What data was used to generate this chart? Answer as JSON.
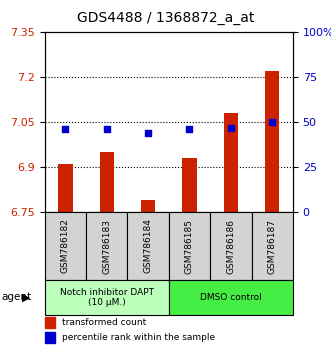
{
  "title": "GDS4488 / 1368872_a_at",
  "samples": [
    "GSM786182",
    "GSM786183",
    "GSM786184",
    "GSM786185",
    "GSM786186",
    "GSM786187"
  ],
  "red_values": [
    6.91,
    6.95,
    6.79,
    6.93,
    7.08,
    7.22
  ],
  "blue_values": [
    46,
    46,
    44,
    46,
    47,
    50
  ],
  "ylim_left": [
    6.75,
    7.35
  ],
  "ylim_right": [
    0,
    100
  ],
  "yticks_left": [
    6.75,
    6.9,
    7.05,
    7.2,
    7.35
  ],
  "yticks_right": [
    0,
    25,
    50,
    75,
    100
  ],
  "ytick_labels_right": [
    "0",
    "25",
    "50",
    "75",
    "100%"
  ],
  "hlines": [
    6.9,
    7.05,
    7.2
  ],
  "bar_color": "#cc2200",
  "dot_color": "#0000cc",
  "bar_bottom": 6.75,
  "agent_groups": [
    {
      "label": "Notch inhibitor DAPT\n(10 μM.)",
      "samples": [
        0,
        1,
        2
      ],
      "color": "#bbffbb"
    },
    {
      "label": "DMSO control",
      "samples": [
        3,
        4,
        5
      ],
      "color": "#44ee44"
    }
  ],
  "legend_bar_label": "transformed count",
  "legend_dot_label": "percentile rank within the sample",
  "agent_label": "agent",
  "title_fontsize": 10,
  "tick_fontsize": 8,
  "bar_width": 0.35,
  "background_color": "#ffffff",
  "plot_bg": "#ffffff",
  "fig_width": 3.31,
  "fig_height": 3.54,
  "fig_dpi": 100
}
